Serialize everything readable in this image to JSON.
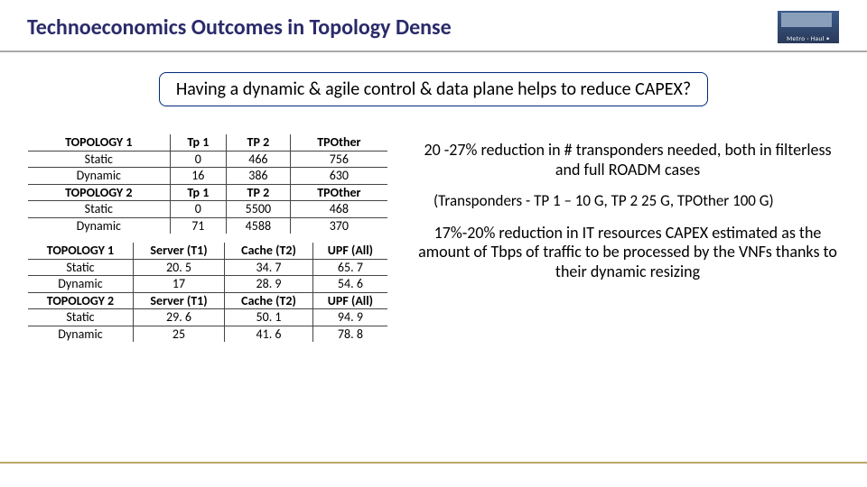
{
  "header": {
    "title": "Technoeconomics Outcomes in Topology Dense",
    "logo_text": "Metro · Haul •"
  },
  "question": "Having a dynamic & agile control & data plane helps to reduce CAPEX?",
  "table1": {
    "sections": [
      {
        "name": "TOPOLOGY 1",
        "cols": [
          "Tp 1",
          "TP 2",
          "TPOther"
        ],
        "rows": [
          {
            "label": "Static",
            "vals": [
              "0",
              "466",
              "756"
            ]
          },
          {
            "label": "Dynamic",
            "vals": [
              "16",
              "386",
              "630"
            ]
          }
        ]
      },
      {
        "name": "TOPOLOGY 2",
        "cols": [
          "Tp 1",
          "TP 2",
          "TPOther"
        ],
        "rows": [
          {
            "label": "Static",
            "vals": [
              "0",
              "5500",
              "468"
            ]
          },
          {
            "label": "Dynamic",
            "vals": [
              "71",
              "4588",
              "370"
            ]
          }
        ]
      }
    ]
  },
  "table2": {
    "sections": [
      {
        "name": "TOPOLOGY 1",
        "cols": [
          "Server (T1)",
          "Cache (T2)",
          "UPF (All)"
        ],
        "rows": [
          {
            "label": "Static",
            "vals": [
              "20. 5",
              "34. 7",
              "65. 7"
            ]
          },
          {
            "label": "Dynamic",
            "vals": [
              "17",
              "28. 9",
              "54. 6"
            ]
          }
        ]
      },
      {
        "name": "TOPOLOGY 2",
        "cols": [
          "Server (T1)",
          "Cache (T2)",
          "UPF (All)"
        ],
        "rows": [
          {
            "label": "Static",
            "vals": [
              "29. 6",
              "50. 1",
              "94. 9"
            ]
          },
          {
            "label": "Dynamic",
            "vals": [
              "25",
              "41. 6",
              "78. 8"
            ]
          }
        ]
      }
    ]
  },
  "text": {
    "p1": "20 -27% reduction in # transponders needed, both in filterless and full ROADM cases",
    "p2": "(Transponders - TP 1 – 10 G, TP 2 25 G, TPOther 100 G)",
    "p3": "17%-20% reduction in IT resources CAPEX estimated as the amount of Tbps of traffic to be processed by the VNFs thanks to their dynamic resizing"
  },
  "colors": {
    "title_color": "#2a2a6a",
    "question_border": "#002a7a",
    "footer_line": "#bca66a"
  }
}
